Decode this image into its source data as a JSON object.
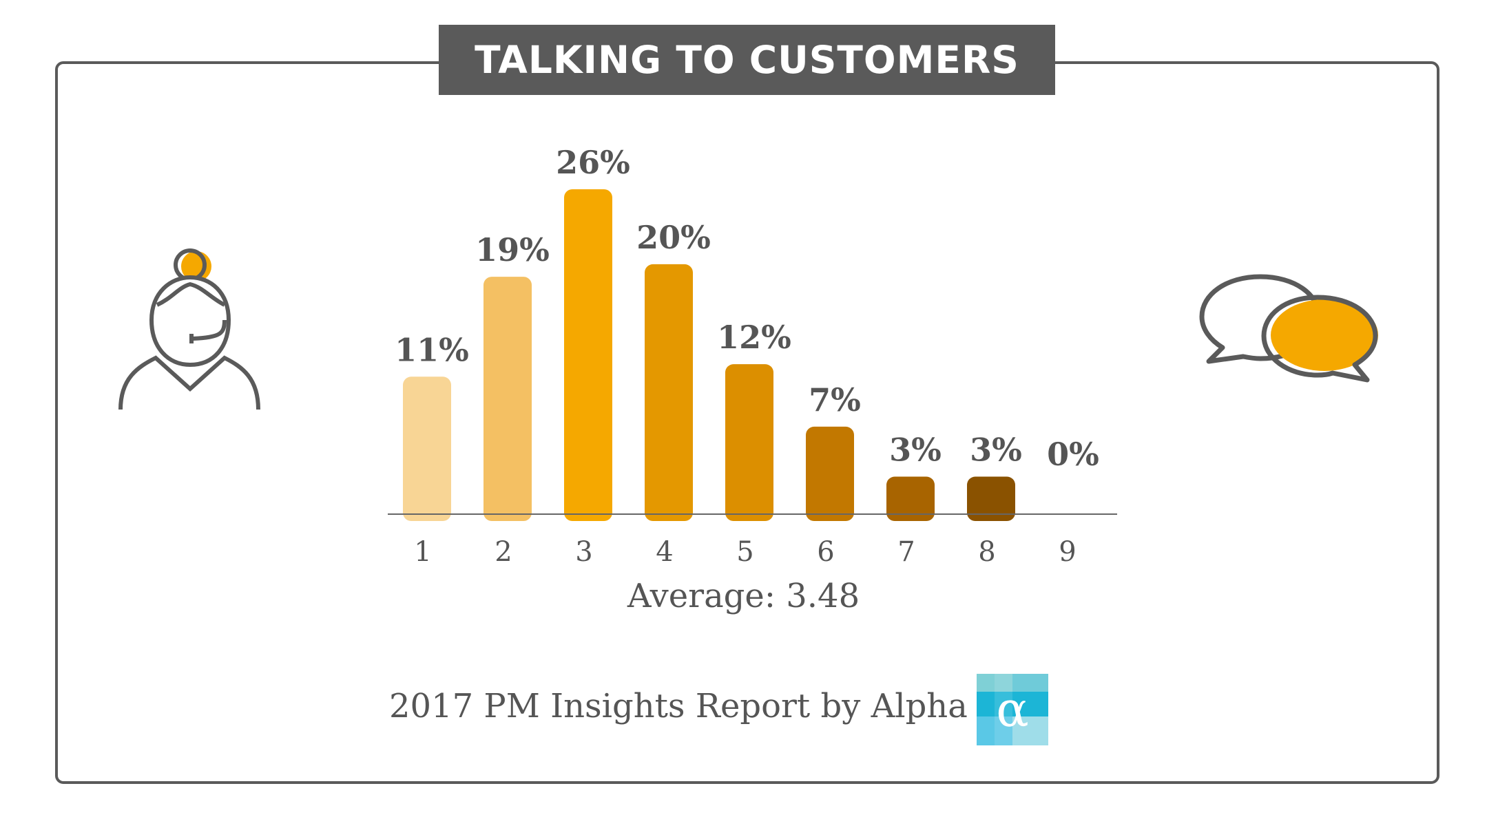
{
  "title": "TALKING TO CUSTOMERS",
  "average_label": "Average: 3.48",
  "footer": {
    "source": "2017 PM Insights Report by Alpha",
    "logo_glyph": "α",
    "logo_colors": [
      "#7fd0d6",
      "#1cb5d6",
      "#5ac8e6",
      "#9fdde9"
    ]
  },
  "icons": {
    "left": "customer-support-agent-icon",
    "right": "speech-bubbles-icon"
  },
  "colors": {
    "accent": "#f5a800",
    "frame": "#5a5a5a",
    "text": "#555555"
  },
  "chart_data": {
    "type": "bar",
    "categories": [
      "1",
      "2",
      "3",
      "4",
      "5",
      "6",
      "7",
      "8",
      "9"
    ],
    "values": [
      11,
      19,
      26,
      20,
      12,
      7,
      3,
      3,
      0
    ],
    "value_labels": [
      "11%",
      "19%",
      "26%",
      "20%",
      "12%",
      "7%",
      "3%",
      "3%",
      "0%"
    ],
    "bar_colors": [
      "#f8d595",
      "#f4c063",
      "#f5a800",
      "#e49800",
      "#dc8f00",
      "#c27800",
      "#a86400",
      "#8a5200",
      "#8a5200"
    ],
    "ylim": [
      0,
      26
    ],
    "grid": false,
    "legend": "none"
  }
}
